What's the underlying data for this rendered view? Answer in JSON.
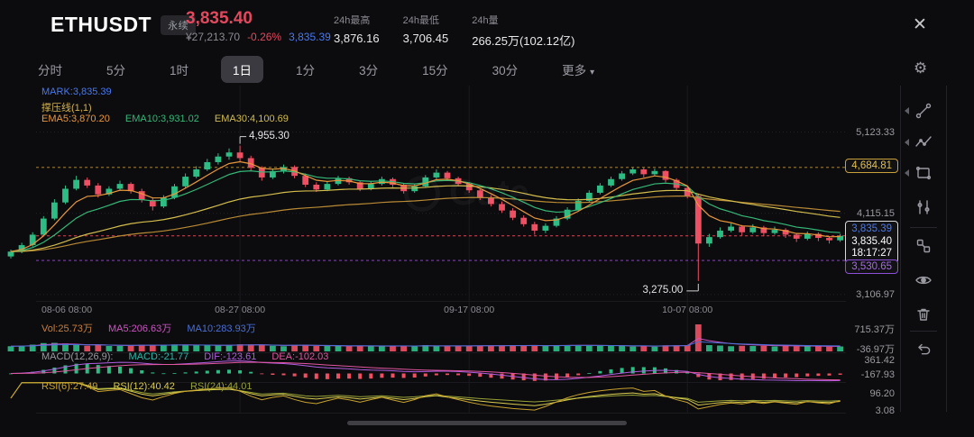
{
  "header": {
    "symbol": "ETHUSDT",
    "badge": "永续",
    "last_price": "3,835.40",
    "fiat_price": "¥27,213.70",
    "change_pct": "-0.26%",
    "index_price": "3,835.39",
    "close_icon": "✕",
    "stats": [
      {
        "label": "24h最高",
        "value": "3,876.16"
      },
      {
        "label": "24h最低",
        "value": "3,706.45"
      },
      {
        "label": "24h量",
        "value": "266.25万(102.12亿)"
      }
    ]
  },
  "tabs": {
    "items": [
      "分时",
      "5分",
      "1时",
      "1日",
      "1分",
      "3分",
      "15分",
      "30分"
    ],
    "selected": "1日",
    "more_label": "更多",
    "caret": "▾",
    "gear_icon": "⚙"
  },
  "legend_main": {
    "mark": "MARK:3,835.39",
    "pressure": "撑压线(1,1)",
    "ema5": "EMA5:3,870.20",
    "ema10": "EMA10:3,931.02",
    "ema30": "EMA30:4,100.69"
  },
  "legend_volume": {
    "vol": "Vol:25.73万",
    "ma5": "MA5:206.63万",
    "ma10": "MA10:283.93万",
    "axis_high": "715.37万",
    "axis_low": "-36.97万"
  },
  "legend_macd": {
    "title": "MACD(12,26,9):",
    "macd": "MACD:-21.77",
    "dif": "DIF:-123.61",
    "dea": "DEA:-102.03",
    "axis_high": "361.42",
    "axis_low": "-167.93"
  },
  "legend_rsi": {
    "rsi6": "RSI(6):27.49",
    "rsi12": "RSI(12):40.42",
    "rsi24": "RSI(24):44.01",
    "axis_high": "96.20",
    "axis_low": "3.08"
  },
  "price_axis": {
    "t1": "5,123.33",
    "t2": "4,115.15",
    "t3": "3,106.97",
    "resistance_box": "4,684.81",
    "mark_price": "3,835.39",
    "last_price": "3,835.40",
    "last_time": "18:17:27",
    "support_box": "3,530.65"
  },
  "watermark": "Gate",
  "toolbar": {
    "icons": [
      "trend-line",
      "zigzag-line",
      "shape-draw",
      "indicator-sliders",
      "object-group",
      "eye-visibility",
      "trash-delete",
      "undo"
    ]
  },
  "chart_data": {
    "type": "candlestick",
    "symbol": "ETHUSDT",
    "interval": "1日",
    "ylim": [
      3050,
      5700
    ],
    "price_gridlines": [
      5123.33,
      4115.15,
      3106.97
    ],
    "levels": [
      {
        "value": 4684.81,
        "color": "#c9a13b"
      },
      {
        "value": 3835.4,
        "color": "#e24a5f"
      },
      {
        "value": 3530.65,
        "color": "#9b59d0"
      }
    ],
    "date_ticks": [
      {
        "label": "08-06 08:00",
        "index": 0
      },
      {
        "label": "08-27 08:00",
        "index": 21
      },
      {
        "label": "09-17 08:00",
        "index": 42
      },
      {
        "label": "10-07 08:00",
        "index": 62
      }
    ],
    "annotations": [
      {
        "label": "4,955.30",
        "index": 21,
        "value": 4955.3,
        "side": "left"
      },
      {
        "label": "3,275.00",
        "index": 63,
        "value": 3275.0,
        "side": "right"
      }
    ],
    "emas": [
      5,
      10,
      30
    ],
    "sub_panes": [
      "volume",
      "macd",
      "rsi"
    ],
    "colors": {
      "up": "#2ebc85",
      "down": "#ee4f63",
      "ema5": "#e8973c",
      "ema10": "#35b878",
      "ema30": "#d3bd4d",
      "pressure": "#b98a35",
      "vol_ma5": "#cf53c5",
      "vol_ma10": "#4a6fd8",
      "dif": "#b05ce0",
      "dea": "#e0569f",
      "rsi6": "#c8a22e",
      "rsi12": "#d8cc4e",
      "rsi24": "#97a136",
      "resistance": "#c9a13b",
      "support": "#9b59d0",
      "last": "#e24a5f",
      "mark": "#4878f0"
    },
    "candles": [
      [
        3580,
        3665,
        3555,
        3640
      ],
      [
        3640,
        3750,
        3620,
        3720
      ],
      [
        3720,
        3880,
        3700,
        3850
      ],
      [
        3850,
        4080,
        3830,
        4050
      ],
      [
        4050,
        4290,
        4030,
        4250
      ],
      [
        4250,
        4460,
        4230,
        4420
      ],
      [
        4420,
        4580,
        4400,
        4530
      ],
      [
        4530,
        4560,
        4430,
        4460
      ],
      [
        4460,
        4490,
        4310,
        4350
      ],
      [
        4350,
        4450,
        4330,
        4420
      ],
      [
        4420,
        4520,
        4400,
        4480
      ],
      [
        4480,
        4500,
        4360,
        4390
      ],
      [
        4390,
        4420,
        4250,
        4280
      ],
      [
        4280,
        4310,
        4150,
        4200
      ],
      [
        4200,
        4340,
        4180,
        4310
      ],
      [
        4310,
        4480,
        4290,
        4450
      ],
      [
        4450,
        4610,
        4430,
        4570
      ],
      [
        4570,
        4700,
        4550,
        4660
      ],
      [
        4660,
        4790,
        4640,
        4750
      ],
      [
        4750,
        4860,
        4720,
        4820
      ],
      [
        4820,
        4920,
        4780,
        4870
      ],
      [
        4870,
        4955.3,
        4760,
        4800
      ],
      [
        4800,
        4830,
        4640,
        4680
      ],
      [
        4680,
        4700,
        4520,
        4560
      ],
      [
        4560,
        4670,
        4540,
        4640
      ],
      [
        4640,
        4720,
        4610,
        4690
      ],
      [
        4690,
        4710,
        4550,
        4580
      ],
      [
        4580,
        4610,
        4440,
        4470
      ],
      [
        4470,
        4500,
        4380,
        4410
      ],
      [
        4410,
        4510,
        4390,
        4480
      ],
      [
        4480,
        4580,
        4460,
        4550
      ],
      [
        4550,
        4570,
        4470,
        4500
      ],
      [
        4500,
        4520,
        4390,
        4420
      ],
      [
        4420,
        4510,
        4400,
        4480
      ],
      [
        4480,
        4570,
        4460,
        4540
      ],
      [
        4540,
        4560,
        4440,
        4470
      ],
      [
        4470,
        4490,
        4360,
        4390
      ],
      [
        4390,
        4480,
        4370,
        4450
      ],
      [
        4450,
        4590,
        4430,
        4560
      ],
      [
        4560,
        4660,
        4540,
        4620
      ],
      [
        4620,
        4640,
        4520,
        4550
      ],
      [
        4550,
        4570,
        4450,
        4480
      ],
      [
        4480,
        4500,
        4370,
        4400
      ],
      [
        4400,
        4420,
        4280,
        4310
      ],
      [
        4310,
        4340,
        4200,
        4230
      ],
      [
        4230,
        4260,
        4120,
        4150
      ],
      [
        4150,
        4180,
        4030,
        4060
      ],
      [
        4060,
        4090,
        3950,
        3980
      ],
      [
        3980,
        4010,
        3850,
        3900
      ],
      [
        3900,
        3990,
        3870,
        3960
      ],
      [
        3960,
        4080,
        3940,
        4050
      ],
      [
        4050,
        4190,
        4030,
        4160
      ],
      [
        4160,
        4300,
        4140,
        4270
      ],
      [
        4270,
        4400,
        4250,
        4370
      ],
      [
        4370,
        4490,
        4350,
        4460
      ],
      [
        4460,
        4570,
        4440,
        4540
      ],
      [
        4540,
        4640,
        4520,
        4610
      ],
      [
        4610,
        4685,
        4590,
        4660
      ],
      [
        4660,
        4680,
        4560,
        4600
      ],
      [
        4600,
        4670,
        4580,
        4640
      ],
      [
        4640,
        4650,
        4500,
        4530
      ],
      [
        4530,
        4550,
        4400,
        4430
      ],
      [
        4430,
        4460,
        4300,
        4330
      ],
      [
        4330,
        4360,
        3275,
        3740
      ],
      [
        3740,
        3860,
        3700,
        3820
      ],
      [
        3820,
        3940,
        3800,
        3900
      ],
      [
        3900,
        3990,
        3880,
        3950
      ],
      [
        3950,
        3970,
        3840,
        3880
      ],
      [
        3880,
        3980,
        3860,
        3940
      ],
      [
        3940,
        3960,
        3830,
        3870
      ],
      [
        3870,
        3950,
        3850,
        3910
      ],
      [
        3910,
        3930,
        3810,
        3850
      ],
      [
        3850,
        3870,
        3760,
        3800
      ],
      [
        3800,
        3890,
        3780,
        3860
      ],
      [
        3860,
        3880,
        3770,
        3810
      ],
      [
        3810,
        3830,
        3740,
        3780
      ],
      [
        3780,
        3860,
        3760,
        3835.4
      ]
    ]
  }
}
